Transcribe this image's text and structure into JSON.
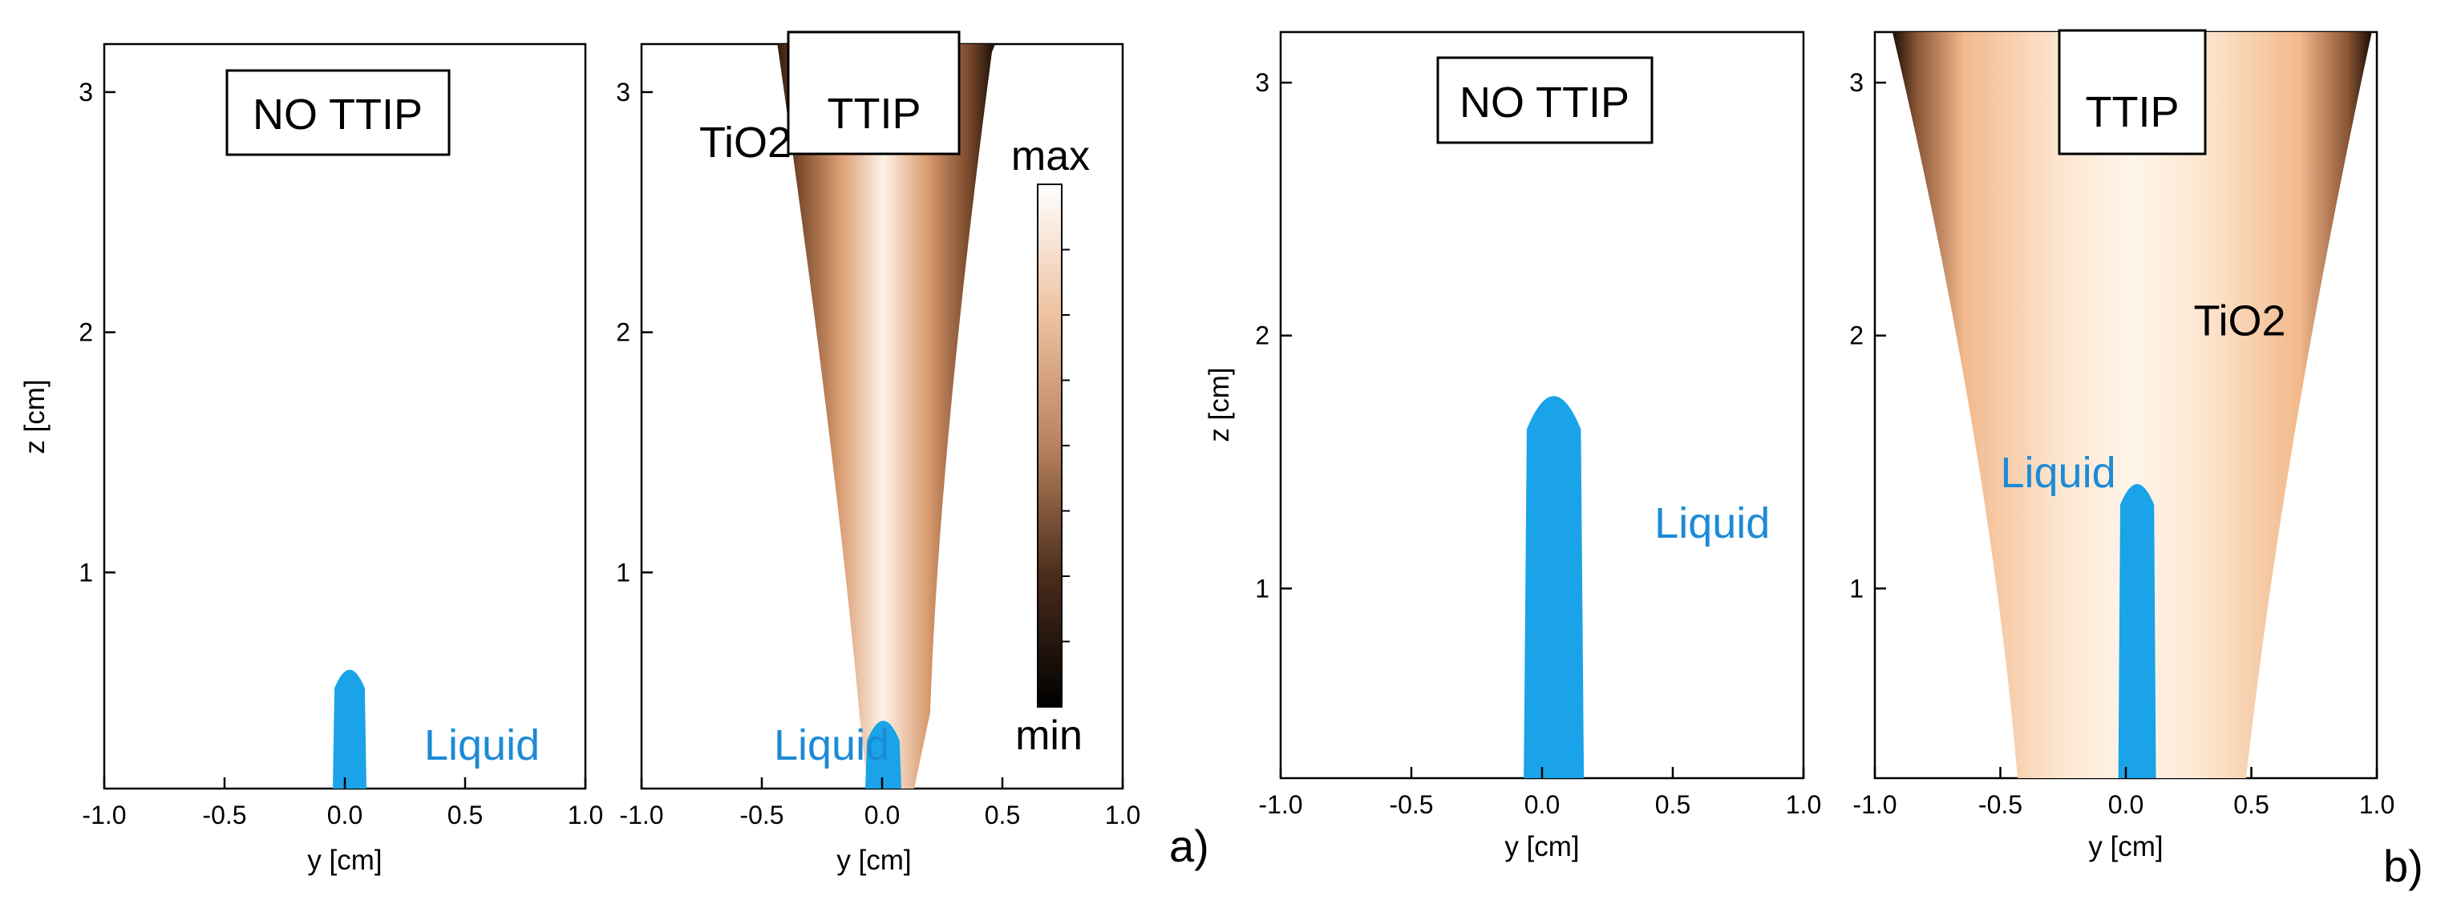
{
  "chart_data": [
    {
      "type": "heatmap",
      "panel": "a",
      "subplot": "left",
      "title": "NO TTIP",
      "xlabel": "y [cm]",
      "ylabel": "z [cm]",
      "xlim": [
        -1.0,
        1.0
      ],
      "ylim": [
        0.1,
        3.2
      ],
      "xticks": [
        "-1.0",
        "-0.5",
        "0.0",
        "0.5",
        "1.0"
      ],
      "yticks": [
        "1",
        "2",
        "3"
      ],
      "annotations": [
        {
          "text": "Liquid",
          "y": 0.33,
          "z": 0.22
        }
      ],
      "regions": [
        {
          "name": "liquid",
          "y_range": [
            -0.05,
            0.09
          ],
          "z_range": [
            0.1,
            0.63
          ],
          "color": "#1aa3e8"
        }
      ]
    },
    {
      "type": "heatmap",
      "panel": "a",
      "subplot": "right",
      "title": "TTIP",
      "xlabel": "y [cm]",
      "ylabel": "",
      "xlim": [
        -1.0,
        1.0
      ],
      "ylim": [
        0.1,
        3.2
      ],
      "xticks": [
        "-1.0",
        "-0.5",
        "0.0",
        "0.5",
        "1.0"
      ],
      "yticks": [
        "1",
        "2",
        "3"
      ],
      "annotations": [
        {
          "text": "TiO2",
          "y": -0.76,
          "z": 2.73
        },
        {
          "text": "Liquid",
          "y": -0.45,
          "z": 0.22
        }
      ],
      "colorbar": {
        "max_label": "max",
        "min_label": "min",
        "colors": [
          "#000000",
          "#b9825e",
          "#ffffff"
        ]
      },
      "regions": [
        {
          "name": "TiO2",
          "y_range": [
            -0.46,
            0.47
          ],
          "z_range": [
            0.1,
            3.2
          ],
          "color": "#f0b58a"
        },
        {
          "name": "liquid",
          "y_range": [
            -0.07,
            0.08
          ],
          "z_range": [
            0.1,
            0.42
          ],
          "color": "#1aa3e8"
        }
      ]
    },
    {
      "type": "heatmap",
      "panel": "b",
      "subplot": "left",
      "title": "NO TTIP",
      "xlabel": "y [cm]",
      "ylabel": "z [cm]",
      "xlim": [
        -1.0,
        1.0
      ],
      "ylim": [
        0.25,
        3.2
      ],
      "xticks": [
        "-1.0",
        "-0.5",
        "0.0",
        "0.5",
        "1.0"
      ],
      "yticks": [
        "1",
        "2",
        "3"
      ],
      "annotations": [
        {
          "text": "Liquid",
          "y": 0.43,
          "z": 1.2
        }
      ],
      "regions": [
        {
          "name": "liquid",
          "y_range": [
            -0.07,
            0.16
          ],
          "z_range": [
            0.25,
            1.82
          ],
          "color": "#1aa3e8"
        }
      ]
    },
    {
      "type": "heatmap",
      "panel": "b",
      "subplot": "right",
      "title": "TTIP",
      "xlabel": "y [cm]",
      "ylabel": "",
      "xlim": [
        -1.0,
        1.0
      ],
      "ylim": [
        0.25,
        3.2
      ],
      "xticks": [
        "-1.0",
        "-0.5",
        "0.0",
        "0.5",
        "1.0"
      ],
      "yticks": [
        "1",
        "2",
        "3"
      ],
      "annotations": [
        {
          "text": "TiO2",
          "y": 0.27,
          "z": 2.0
        },
        {
          "text": "Liquid",
          "y": -0.5,
          "z": 1.4
        }
      ],
      "regions": [
        {
          "name": "TiO2",
          "y_range": [
            -0.93,
            0.98
          ],
          "z_range": [
            0.25,
            3.2
          ],
          "color": "#fde3cb"
        },
        {
          "name": "liquid",
          "y_range": [
            -0.03,
            0.12
          ],
          "z_range": [
            0.25,
            1.45
          ],
          "color": "#1aa3e8"
        }
      ]
    }
  ],
  "panel_labels": {
    "a": "a)",
    "b": "b)"
  }
}
